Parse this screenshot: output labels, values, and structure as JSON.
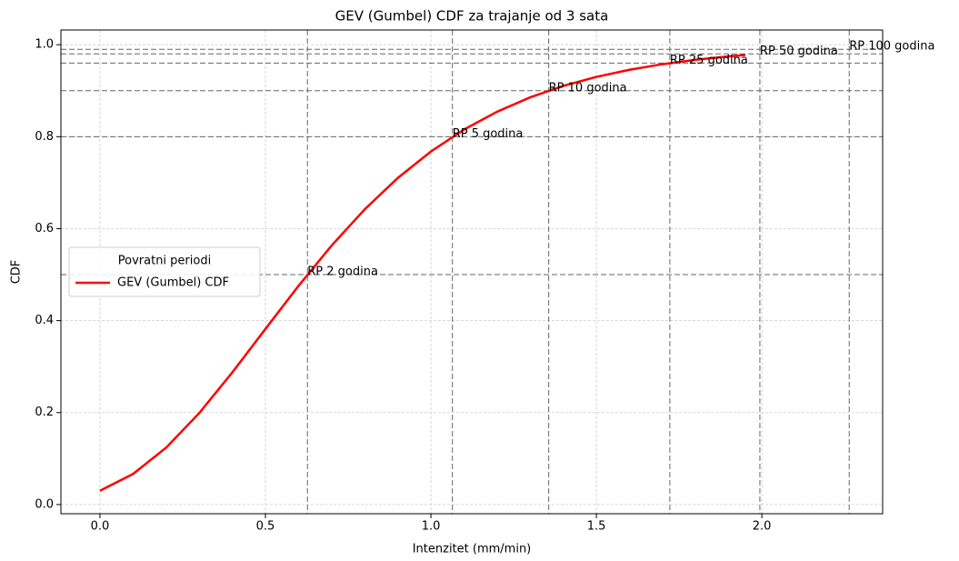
{
  "chart_data": {
    "type": "line",
    "title": "GEV (Gumbel) CDF za trajanje od 3 sata",
    "xlabel": "Intenzitet (mm/min)",
    "ylabel": "CDF",
    "x": [
      0,
      0.1,
      0.2,
      0.3,
      0.4,
      0.5,
      0.6,
      0.7,
      0.8,
      0.9,
      1.0,
      1.1,
      1.2,
      1.3,
      1.4,
      1.5,
      1.6,
      1.7,
      1.8,
      1.9,
      1.95
    ],
    "series": [
      {
        "name": "GEV (Gumbel) CDF",
        "color": "#ff0000",
        "values": [
          0.03,
          0.0665,
          0.1236,
          0.1989,
          0.2874,
          0.3818,
          0.4755,
          0.5633,
          0.642,
          0.7102,
          0.7678,
          0.8155,
          0.8543,
          0.8855,
          0.9104,
          0.9301,
          0.9455,
          0.9577,
          0.9672,
          0.9746,
          0.9776
        ]
      }
    ],
    "return_periods": [
      {
        "label": "RP 2 godina",
        "x": 0.627,
        "y": 0.5
      },
      {
        "label": "RP 5 godina",
        "x": 1.065,
        "y": 0.8
      },
      {
        "label": "RP 10 godina",
        "x": 1.356,
        "y": 0.9
      },
      {
        "label": "RP 25 godina",
        "x": 1.722,
        "y": 0.96
      },
      {
        "label": "RP 50 godina",
        "x": 1.994,
        "y": 0.98
      },
      {
        "label": "RP 100 godina",
        "x": 2.264,
        "y": 0.99
      }
    ],
    "xlim": [
      -0.118,
      2.365
    ],
    "ylim": [
      -0.02,
      1.032
    ],
    "xticks": [
      {
        "value": 0,
        "label": "0.0"
      },
      0.5,
      {
        "value": 1,
        "label": "1.0"
      },
      1.5,
      {
        "value": 2,
        "label": "2.0"
      }
    ],
    "yticks": [
      {
        "value": 0,
        "label": "0.0"
      },
      0.2,
      0.4,
      0.6,
      0.8,
      {
        "value": 1,
        "label": "1.0"
      }
    ],
    "grid": true,
    "legend": {
      "title": "Povratni periodi",
      "loc": "center left"
    }
  }
}
